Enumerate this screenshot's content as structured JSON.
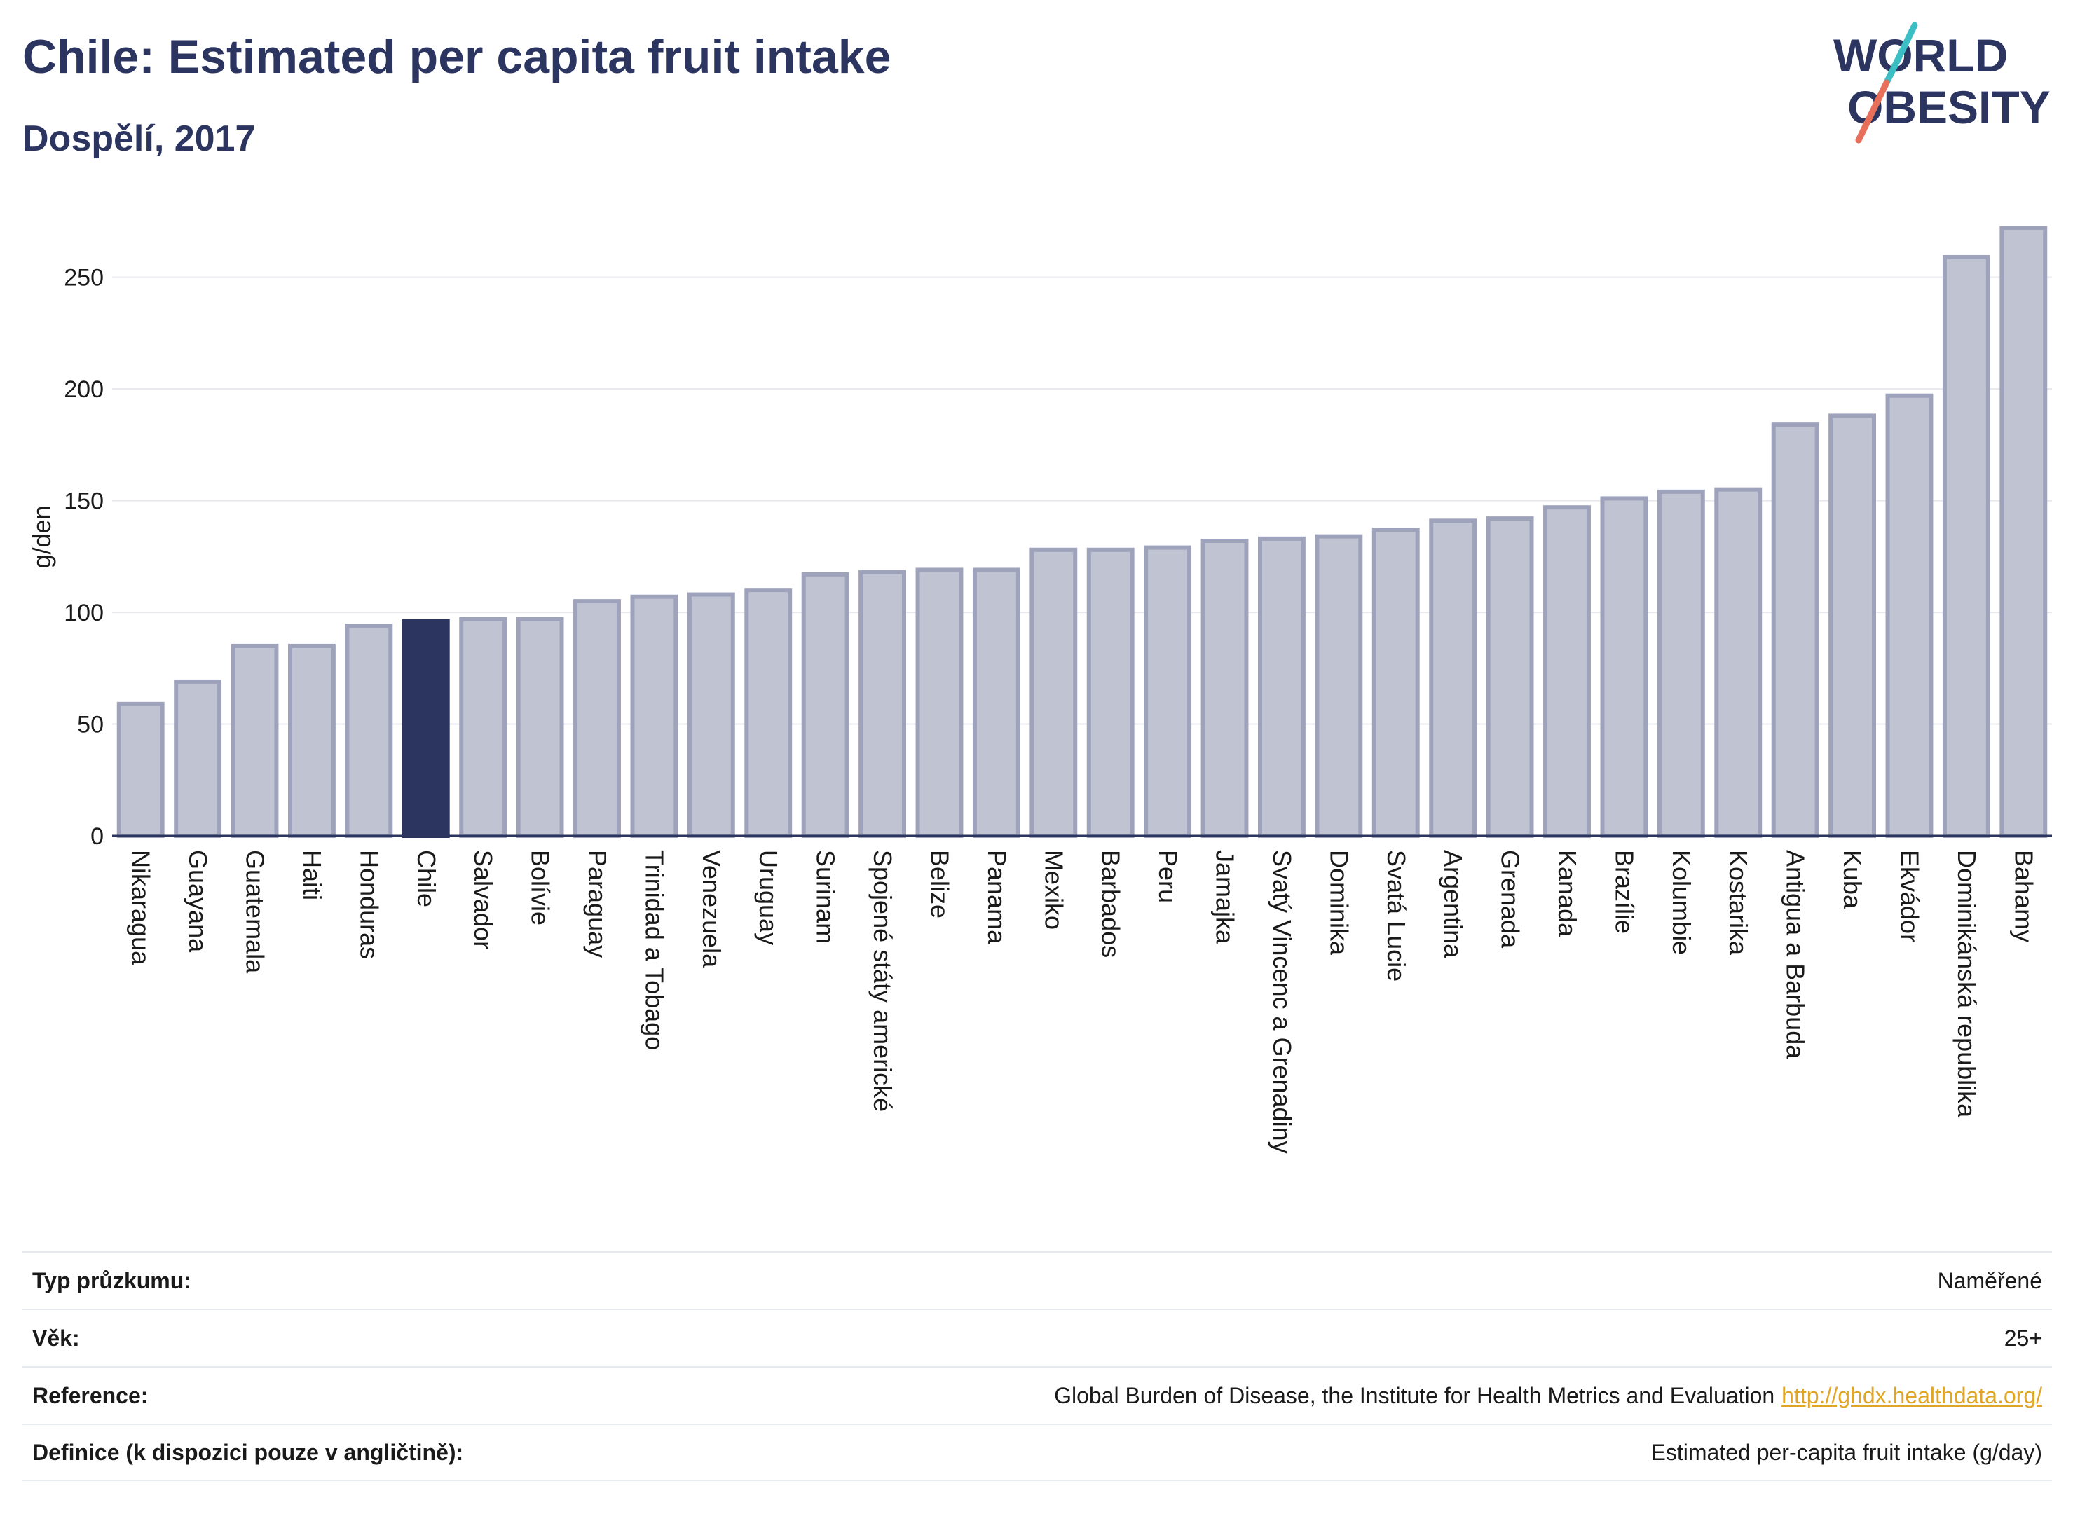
{
  "header": {
    "title": "Chile: Estimated per capita fruit intake",
    "subtitle": "Dospělí, 2017"
  },
  "logo": {
    "line1": "WORLD",
    "line2": "OBESITY",
    "colors": {
      "text": "#2b3560",
      "slash_teal": "#3bbfc4",
      "slash_coral": "#e8705a"
    }
  },
  "colors": {
    "bar": "#c0c4d2",
    "bar_stroke": "#9ea3bb",
    "highlight": "#2b3560",
    "grid": "#e6e8ee",
    "axis": "#2b3560",
    "text": "#1a1a1a"
  },
  "chart_data": {
    "type": "bar",
    "ylabel": "g/den",
    "ylim": [
      0,
      280
    ],
    "yticks": [
      0,
      50,
      100,
      150,
      200,
      250
    ],
    "grid": true,
    "highlight": "Chile",
    "categories": [
      "Nikaragua",
      "Guayana",
      "Guatemala",
      "Haiti",
      "Honduras",
      "Chile",
      "Salvador",
      "Bolívie",
      "Paraguay",
      "Trinidad a Tobago",
      "Venezuela",
      "Uruguay",
      "Surinam",
      "Spojené státy americké",
      "Belize",
      "Panama",
      "Mexiko",
      "Barbados",
      "Peru",
      "Jamajka",
      "Svatý Vincenc a Grenadiny",
      "Dominika",
      "Svatá Lucie",
      "Argentina",
      "Grenada",
      "Kanada",
      "Brazílie",
      "Kolumbie",
      "Kostarika",
      "Antigua a Barbuda",
      "Kuba",
      "Ekvádor",
      "Dominikánská republika",
      "Bahamy"
    ],
    "values": [
      59,
      69,
      85,
      85,
      94,
      96,
      97,
      97,
      105,
      107,
      108,
      110,
      117,
      118,
      119,
      119,
      128,
      128,
      129,
      132,
      133,
      134,
      137,
      141,
      142,
      147,
      151,
      154,
      155,
      184,
      188,
      197,
      259,
      272
    ]
  },
  "meta": [
    {
      "label": "Typ průzkumu:",
      "value": "Naměřené"
    },
    {
      "label": "Věk:",
      "value": "25+"
    },
    {
      "label": "Reference:",
      "value": "Global Burden of Disease, the Institute for Health Metrics and Evaluation",
      "link": "http://ghdx.healthdata.org/"
    },
    {
      "label": "Definice (k dispozici pouze v angličtině):",
      "value": "Estimated per-capita fruit intake (g/day)"
    }
  ]
}
